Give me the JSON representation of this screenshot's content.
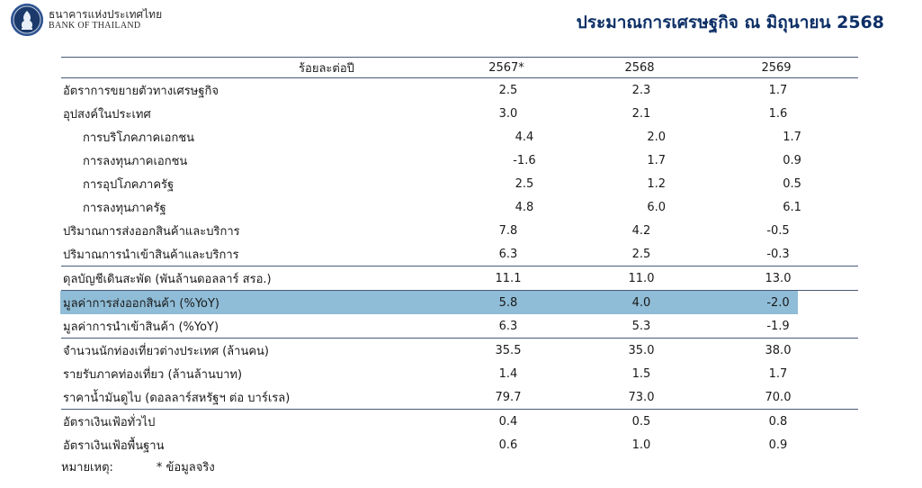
{
  "logo": {
    "thai_name": "ธนาคารแห่งประเทศไทย",
    "english_name": "BANK OF THAILAND"
  },
  "title": "ประมาณการเศรษฐกิจ ณ มิถุนายน 2568",
  "table": {
    "unit_label": "ร้อยละต่อปี",
    "years": [
      "2567*",
      "2568",
      "2569"
    ],
    "rows": [
      {
        "label": "อัตราการขยายตัวทางเศรษฐกิจ",
        "indent": false,
        "values": [
          "2.5",
          "2.3",
          "1.7"
        ]
      },
      {
        "label": "อุปสงค์ในประเทศ",
        "indent": false,
        "values": [
          "3.0",
          "2.1",
          "1.6"
        ]
      },
      {
        "label": "การบริโภคภาคเอกชน",
        "indent": true,
        "values": [
          "4.4",
          "2.0",
          "1.7"
        ]
      },
      {
        "label": "การลงทุนภาคเอกชน",
        "indent": true,
        "values": [
          "-1.6",
          "1.7",
          "0.9"
        ]
      },
      {
        "label": "การอุปโภคภาครัฐ",
        "indent": true,
        "values": [
          "2.5",
          "1.2",
          "0.5"
        ]
      },
      {
        "label": "การลงทุนภาครัฐ",
        "indent": true,
        "values": [
          "4.8",
          "6.0",
          "6.1"
        ]
      },
      {
        "label": "ปริมาณการส่งออกสินค้าและบริการ",
        "indent": false,
        "values": [
          "7.8",
          "4.2",
          "-0.5"
        ]
      },
      {
        "label": "ปริมาณการนำเข้าสินค้าและบริการ",
        "indent": false,
        "values": [
          "6.3",
          "2.5",
          "-0.3"
        ]
      },
      {
        "label": "ดุลบัญชีเดินสะพัด (พันล้านดอลลาร์ สรอ.)",
        "indent": false,
        "values": [
          "11.1",
          "11.0",
          "13.0"
        ]
      },
      {
        "label": "มูลค่าการส่งออกสินค้า (%YoY)",
        "indent": false,
        "values": [
          "5.8",
          "4.0",
          "-2.0"
        ]
      },
      {
        "label": "มูลค่าการนำเข้าสินค้า (%YoY)",
        "indent": false,
        "values": [
          "6.3",
          "5.3",
          "-1.9"
        ]
      },
      {
        "label": "จำนวนนักท่องเที่ยวต่างประเทศ (ล้านคน)",
        "indent": false,
        "values": [
          "35.5",
          "35.0",
          "38.0"
        ]
      },
      {
        "label": "รายรับภาคท่องเที่ยว (ล้านล้านบาท)",
        "indent": false,
        "values": [
          "1.4",
          "1.5",
          "1.7"
        ]
      },
      {
        "label": "ราคาน้ำมันดูไบ (ดอลลาร์สหรัฐฯ ต่อ บาร์เรล)",
        "indent": false,
        "values": [
          "79.7",
          "73.0",
          "70.0"
        ]
      },
      {
        "label": "อัตราเงินเฟ้อทั่วไป",
        "indent": false,
        "values": [
          "0.4",
          "0.5",
          "0.8"
        ]
      },
      {
        "label": "อัตราเงินเฟ้อพื้นฐาน",
        "indent": false,
        "values": [
          "0.6",
          "1.0",
          "0.9"
        ]
      }
    ]
  },
  "note": {
    "label": "หมายเหตุ:",
    "text": "* ข้อมูลจริง"
  },
  "colors": {
    "title": "#0d2f66",
    "highlight": "#8fbcd6",
    "rule": "#4a5a7a",
    "seal": "#1b3a6b"
  }
}
